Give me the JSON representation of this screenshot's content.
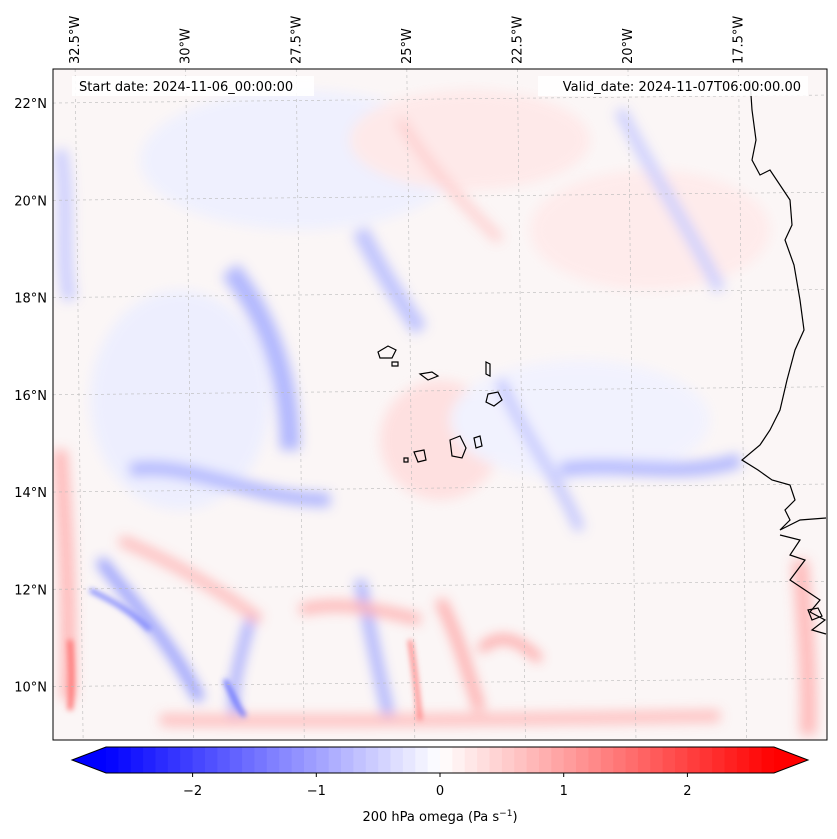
{
  "chart_data": {
    "type": "heatmap",
    "variable_label": "200 hPa omega (Pa s",
    "variable_label_exp": "−1",
    "variable_label_close": ")",
    "start_date": "Start date: 2024-11-06_00:00:00",
    "valid_date": "Valid_date: 2024-11-07T06:00:00.00",
    "lon_range": [
      -33.0,
      -15.5
    ],
    "lat_range": [
      8.9,
      22.7
    ],
    "lon_ticks": [
      {
        "value": -32.5,
        "label": "32.5°W"
      },
      {
        "value": -30.0,
        "label": "30°W"
      },
      {
        "value": -27.5,
        "label": "27.5°W"
      },
      {
        "value": -25.0,
        "label": "25°W"
      },
      {
        "value": -22.5,
        "label": "22.5°W"
      },
      {
        "value": -20.0,
        "label": "20°W"
      },
      {
        "value": -17.5,
        "label": "17.5°W"
      }
    ],
    "lat_ticks": [
      {
        "value": 22,
        "label": "22°N"
      },
      {
        "value": 20,
        "label": "20°N"
      },
      {
        "value": 18,
        "label": "18°N"
      },
      {
        "value": 16,
        "label": "16°N"
      },
      {
        "value": 14,
        "label": "14°N"
      },
      {
        "value": 12,
        "label": "12°N"
      },
      {
        "value": 10,
        "label": "10°N"
      }
    ],
    "colorbar": {
      "cmap": "bwr",
      "range": [
        -2.7,
        2.7
      ],
      "extend": "both",
      "ticks": [
        {
          "value": -2,
          "label": "−2"
        },
        {
          "value": -1,
          "label": "−1"
        },
        {
          "value": 0,
          "label": "0"
        },
        {
          "value": 1,
          "label": "1"
        },
        {
          "value": 2,
          "label": "2"
        }
      ]
    },
    "grid": true,
    "coastline": true
  }
}
